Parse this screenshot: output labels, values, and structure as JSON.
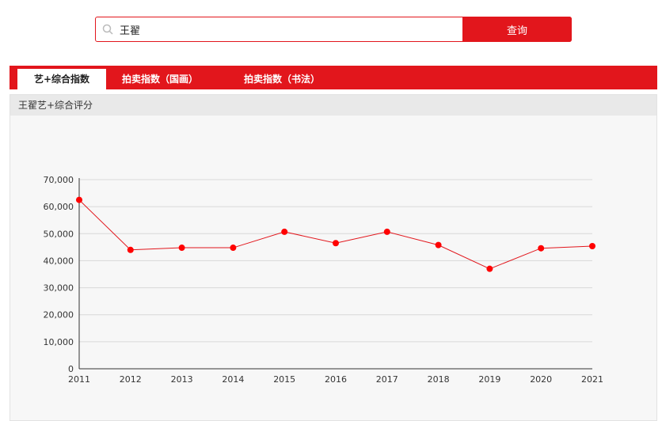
{
  "search": {
    "value": "王翟",
    "button_label": "查询"
  },
  "tabs": [
    {
      "label": "艺+综合指数",
      "active": true
    },
    {
      "label": "拍卖指数（国画）",
      "active": false
    },
    {
      "label": "拍卖指数（书法）",
      "active": false
    }
  ],
  "panel": {
    "title": "王翟艺+综合评分"
  },
  "colors": {
    "accent": "#e2161c",
    "line": "#e2161c",
    "point": "#ff0000"
  },
  "chart_data": {
    "type": "line",
    "x": [
      "2011",
      "2012",
      "2013",
      "2014",
      "2015",
      "2016",
      "2017",
      "2018",
      "2019",
      "2020",
      "2021"
    ],
    "series": [
      {
        "values": [
          62500,
          44000,
          44800,
          44800,
          50700,
          46500,
          50700,
          45800,
          37000,
          44600,
          45400
        ]
      }
    ],
    "yticks": [
      "0",
      "10,000",
      "20,000",
      "30,000",
      "40,000",
      "50,000",
      "60,000",
      "70,000"
    ],
    "ylim": [
      0,
      70000
    ],
    "grid": true
  }
}
